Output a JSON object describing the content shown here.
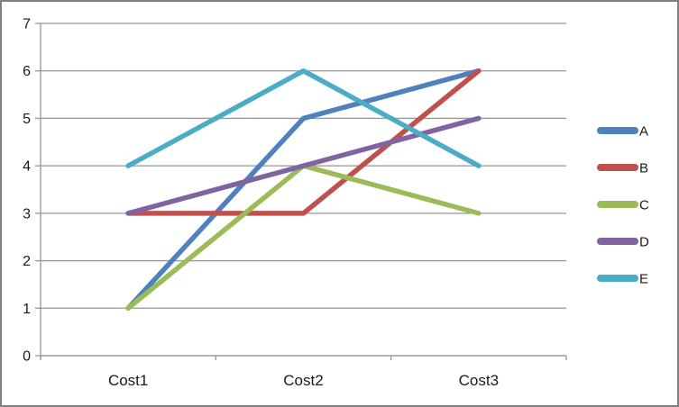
{
  "chart": {
    "background_color": "#ffffff",
    "frame_border_color": "#7f7f7f",
    "gridline_color": "#969696",
    "axis_color": "#969696",
    "text_color": "#1a1a1a"
  },
  "chart_data": {
    "type": "line",
    "title": "",
    "xlabel": "",
    "ylabel": "",
    "categories": [
      "Cost1",
      "Cost2",
      "Cost3"
    ],
    "series": [
      {
        "name": "A",
        "color": "#4F81BD",
        "values": [
          1,
          5,
          6
        ]
      },
      {
        "name": "B",
        "color": "#C0504D",
        "values": [
          3,
          3,
          6
        ]
      },
      {
        "name": "C",
        "color": "#9BBB59",
        "values": [
          1,
          4,
          3
        ]
      },
      {
        "name": "D",
        "color": "#8064A2",
        "values": [
          3,
          4,
          5
        ]
      },
      {
        "name": "E",
        "color": "#4BACC6",
        "values": [
          4,
          6,
          4
        ]
      }
    ],
    "ylim": [
      0,
      7
    ],
    "yticks": [
      0,
      1,
      2,
      3,
      4,
      5,
      6,
      7
    ],
    "grid": true,
    "legend_position": "right"
  }
}
